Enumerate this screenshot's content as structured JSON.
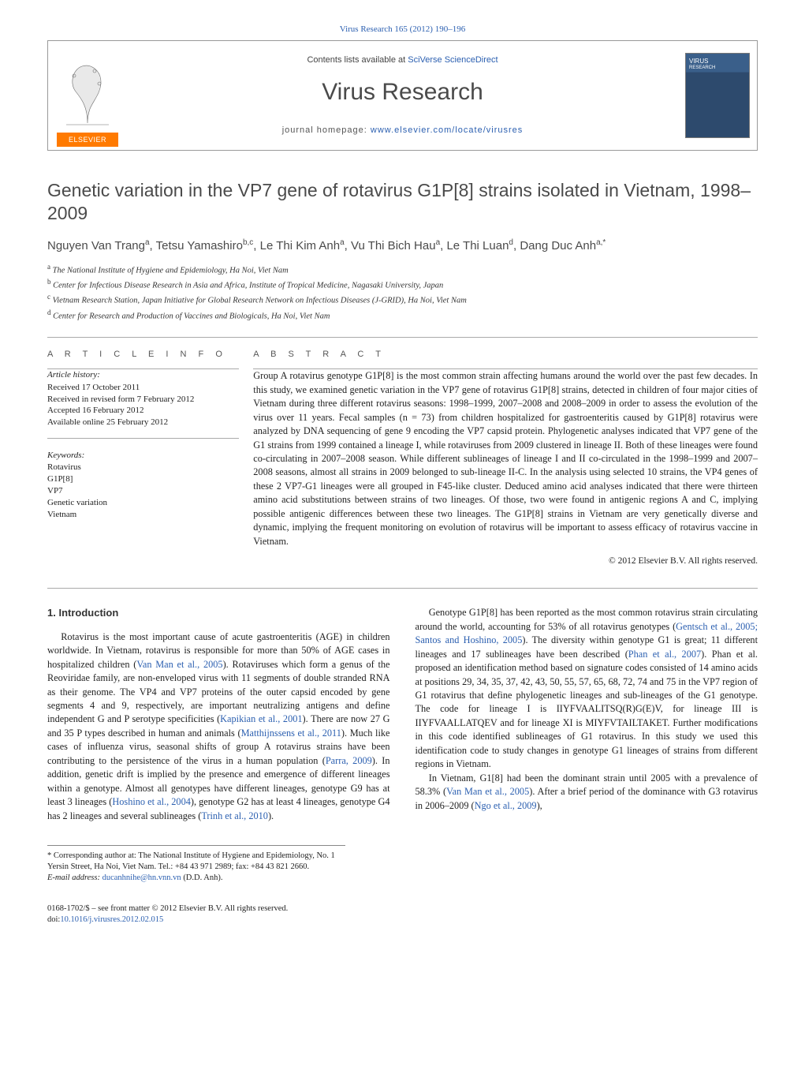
{
  "citation": {
    "prefix": "Virus Research 165 (2012) 190–196",
    "link_text": "Virus Research 165 (2012) 190–196",
    "href": "#"
  },
  "header": {
    "contents_prefix": "Contents lists available at ",
    "contents_link": "SciVerse ScienceDirect",
    "journal": "Virus Research",
    "homepage_prefix": "journal homepage: ",
    "homepage_link": "www.elsevier.com/locate/virusres",
    "elsevier": "ELSEVIER",
    "cover_label1": "VIRUS",
    "cover_label2": "RESEARCH"
  },
  "title": "Genetic variation in the VP7 gene of rotavirus G1P[8] strains isolated in Vietnam, 1998–2009",
  "authors_html": "Nguyen Van Trang<sup>a</sup>, Tetsu Yamashiro<sup>b,c</sup>, Le Thi Kim Anh<sup>a</sup>, Vu Thi Bich Hau<sup>a</sup>, Le Thi Luan<sup>d</sup>, Dang Duc Anh<sup>a,*</sup>",
  "affiliations": [
    {
      "sup": "a",
      "text": "The National Institute of Hygiene and Epidemiology, Ha Noi, Viet Nam"
    },
    {
      "sup": "b",
      "text": "Center for Infectious Disease Research in Asia and Africa, Institute of Tropical Medicine, Nagasaki University, Japan"
    },
    {
      "sup": "c",
      "text": "Vietnam Research Station, Japan Initiative for Global Research Network on Infectious Diseases (J-GRID), Ha Noi, Viet Nam"
    },
    {
      "sup": "d",
      "text": "Center for Research and Production of Vaccines and Biologicals, Ha Noi, Viet Nam"
    }
  ],
  "info": {
    "heading": "a r t i c l e   i n f o",
    "history_label": "Article history:",
    "history": [
      "Received 17 October 2011",
      "Received in revised form 7 February 2012",
      "Accepted 16 February 2012",
      "Available online 25 February 2012"
    ],
    "keywords_label": "Keywords:",
    "keywords": [
      "Rotavirus",
      "G1P[8]",
      "VP7",
      "Genetic variation",
      "Vietnam"
    ]
  },
  "abstract": {
    "heading": "a b s t r a c t",
    "text": "Group A rotavirus genotype G1P[8] is the most common strain affecting humans around the world over the past few decades. In this study, we examined genetic variation in the VP7 gene of rotavirus G1P[8] strains, detected in children of four major cities of Vietnam during three different rotavirus seasons: 1998–1999, 2007–2008 and 2008–2009 in order to assess the evolution of the virus over 11 years. Fecal samples (n = 73) from children hospitalized for gastroenteritis caused by G1P[8] rotavirus were analyzed by DNA sequencing of gene 9 encoding the VP7 capsid protein. Phylogenetic analyses indicated that VP7 gene of the G1 strains from 1999 contained a lineage I, while rotaviruses from 2009 clustered in lineage II. Both of these lineages were found co-circulating in 2007–2008 season. While different sublineages of lineage I and II co-circulated in the 1998–1999 and 2007–2008 seasons, almost all strains in 2009 belonged to sub-lineage II-C. In the analysis using selected 10 strains, the VP4 genes of these 2 VP7-G1 lineages were all grouped in F45-like cluster. Deduced amino acid analyses indicated that there were thirteen amino acid substitutions between strains of two lineages. Of those, two were found in antigenic regions A and C, implying possible antigenic differences between these two lineages. The G1P[8] strains in Vietnam are very genetically diverse and dynamic, implying the frequent monitoring on evolution of rotavirus will be important to assess efficacy of rotavirus vaccine in Vietnam.",
    "copyright": "© 2012 Elsevier B.V. All rights reserved."
  },
  "intro": {
    "heading": "1. Introduction",
    "p1_pre": "Rotavirus is the most important cause of acute gastroenteritis (AGE) in children worldwide. In Vietnam, rotavirus is responsible for more than 50% of AGE cases in hospitalized children (",
    "p1_link1": "Van Man et al., 2005",
    "p1_mid1": "). Rotaviruses which form a genus of the Reoviridae family, are non-enveloped virus with 11 segments of double stranded RNA as their genome. The VP4 and VP7 proteins of the outer capsid encoded by gene segments 4 and 9, respectively, are important neutralizing antigens and define independent G and P serotype specificities (",
    "p1_link2": "Kapikian et al., 2001",
    "p1_mid2": "). There are now 27 G and 35 P types described in human and animals (",
    "p1_link3": "Matthijnssens et al., 2011",
    "p1_mid3": "). Much like cases of influenza virus, seasonal shifts of group A rotavirus strains have been contributing to the persistence of the virus in a human population (",
    "p1_link4": "Parra, 2009",
    "p1_post": "). In addition, genetic drift is implied by the presence and emergence of different lineages",
    "p2_pre": "within a genotype. Almost all genotypes have different lineages, genotype G9 has at least 3 lineages (",
    "p2_link1": "Hoshino et al., 2004",
    "p2_mid1": "), genotype G2 has at least 4 lineages, genotype G4 has 2 lineages and several sublineages (",
    "p2_link2": "Trinh et al., 2010",
    "p2_post": ").",
    "p3_pre": "Genotype G1P[8] has been reported as the most common rotavirus strain circulating around the world, accounting for 53% of all rotavirus genotypes (",
    "p3_link1": "Gentsch et al., 2005; Santos and Hoshino, 2005",
    "p3_mid1": "). The diversity within genotype G1 is great; 11 different lineages and 17 sublineages have been described (",
    "p3_link2": "Phan et al., 2007",
    "p3_post": "). Phan et al. proposed an identification method based on signature codes consisted of 14 amino acids at positions 29, 34, 35, 37, 42, 43, 50, 55, 57, 65, 68, 72, 74 and 75 in the VP7 region of G1 rotavirus that define phylogenetic lineages and sub-lineages of the G1 genotype. The code for lineage I is IIYFVAALITSQ(R)G(E)V, for lineage III is IIYFVAALLATQEV and for lineage XI is MIYFVTAILTAKET. Further modifications in this code identified sublineages of G1 rotavirus. In this study we used this identification code to study changes in genotype G1 lineages of strains from different regions in Vietnam.",
    "p4_pre": "In Vietnam, G1[8] had been the dominant strain until 2005 with a prevalence of 58.3% (",
    "p4_link1": "Van Man et al., 2005",
    "p4_mid1": "). After a brief period of the dominance with G3 rotavirus in 2006–2009 (",
    "p4_link2": "Ngo et al., 2009",
    "p4_post": "),"
  },
  "footnote": {
    "star": "*",
    "text": " Corresponding author at: The National Institute of Hygiene and Epidemiology, No. 1 Yersin Street, Ha Noi, Viet Nam. Tel.: +84 43 971 2989; fax: +84 43 821 2660.",
    "email_label": "E-mail address: ",
    "email": "ducanhnihe@hn.vnn.vn",
    "email_post": " (D.D. Anh)."
  },
  "bottom": {
    "line1": "0168-1702/$ – see front matter © 2012 Elsevier B.V. All rights reserved.",
    "doi_prefix": "doi:",
    "doi": "10.1016/j.virusres.2012.02.015"
  },
  "colors": {
    "link": "#2b5fb0",
    "heading_gray": "#4a4a4a",
    "rule": "#aaaaaa",
    "elsevier_orange": "#ff7a00"
  }
}
